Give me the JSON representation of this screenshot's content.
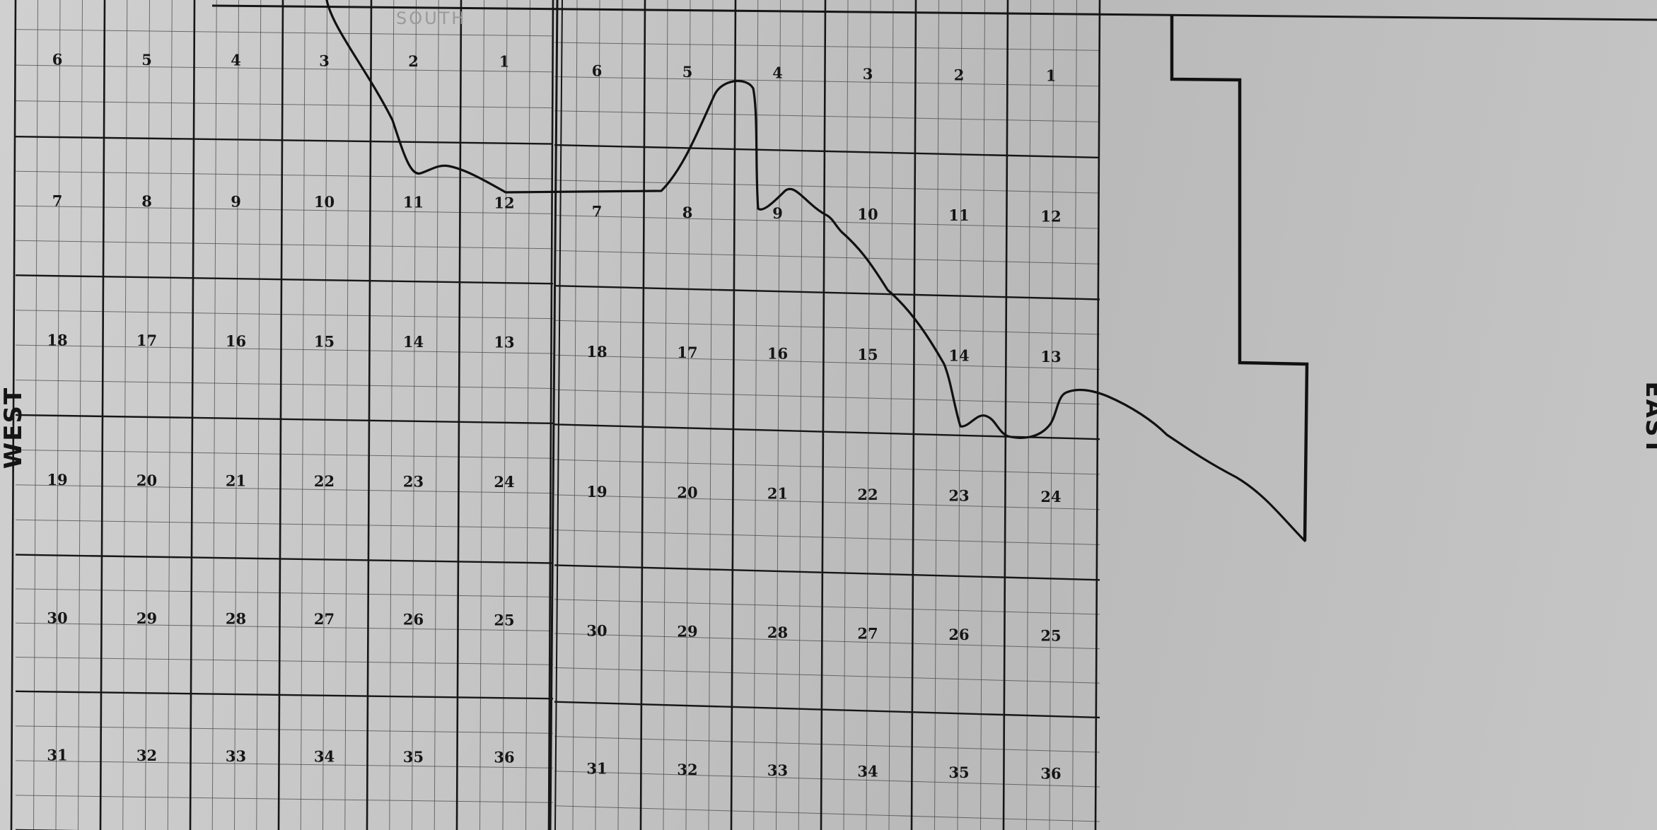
{
  "labels": {
    "west": "WEST",
    "east": "EAST",
    "top": "SOUTH"
  },
  "colors": {
    "paper": "#c8c8c8",
    "grid_major": "#161616",
    "grid_minor": "#4a4a4a",
    "boundary": "#111111"
  },
  "townships": [
    {
      "name": "west-township",
      "sections": [
        [
          6,
          5,
          4,
          3,
          2,
          1
        ],
        [
          7,
          8,
          9,
          10,
          11,
          12
        ],
        [
          18,
          17,
          16,
          15,
          14,
          13
        ],
        [
          19,
          20,
          21,
          22,
          23,
          24
        ],
        [
          30,
          29,
          28,
          27,
          26,
          25
        ],
        [
          31,
          32,
          33,
          34,
          35,
          36
        ]
      ]
    },
    {
      "name": "east-township",
      "sections": [
        [
          6,
          5,
          4,
          3,
          2,
          1
        ],
        [
          7,
          8,
          9,
          10,
          11,
          12
        ],
        [
          18,
          17,
          16,
          15,
          14,
          13
        ],
        [
          19,
          20,
          21,
          22,
          23,
          24
        ],
        [
          30,
          29,
          28,
          27,
          26,
          25
        ],
        [
          31,
          32,
          33,
          34,
          35,
          36
        ]
      ]
    }
  ]
}
